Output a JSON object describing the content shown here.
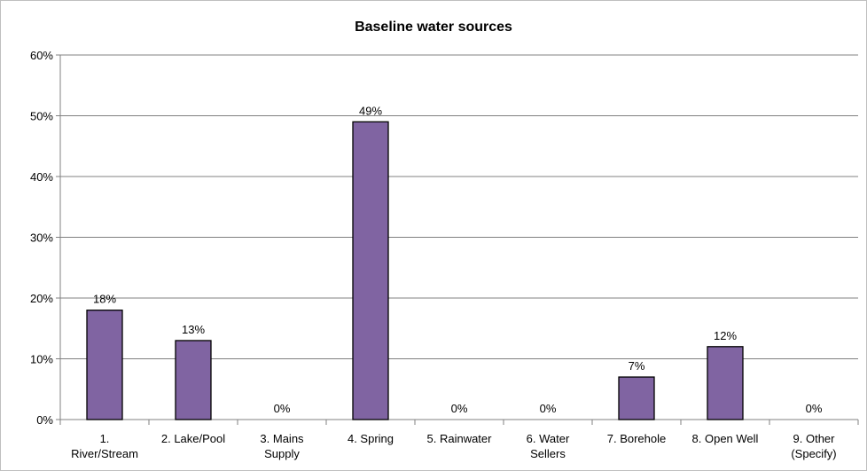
{
  "chart_data": {
    "type": "bar",
    "title": "Baseline water sources",
    "categories": [
      [
        "1.",
        "River/Stream"
      ],
      [
        "2. Lake/Pool"
      ],
      [
        "3. Mains",
        "Supply"
      ],
      [
        "4. Spring"
      ],
      [
        "5. Rainwater"
      ],
      [
        "6. Water",
        "Sellers"
      ],
      [
        "7. Borehole"
      ],
      [
        "8. Open Well"
      ],
      [
        "9. Other",
        "(Specify)"
      ]
    ],
    "values": [
      18,
      13,
      0,
      49,
      0,
      0,
      7,
      12,
      0
    ],
    "data_labels": [
      "18%",
      "13%",
      "0%",
      "49%",
      "0%",
      "0%",
      "7%",
      "12%",
      "0%"
    ],
    "yticks": [
      "0%",
      "10%",
      "20%",
      "30%",
      "40%",
      "50%",
      "60%"
    ],
    "ylim": [
      0,
      60
    ],
    "xlabel": "",
    "ylabel": "",
    "grid": true,
    "legend": "none",
    "bar_color": "#8064a2"
  }
}
